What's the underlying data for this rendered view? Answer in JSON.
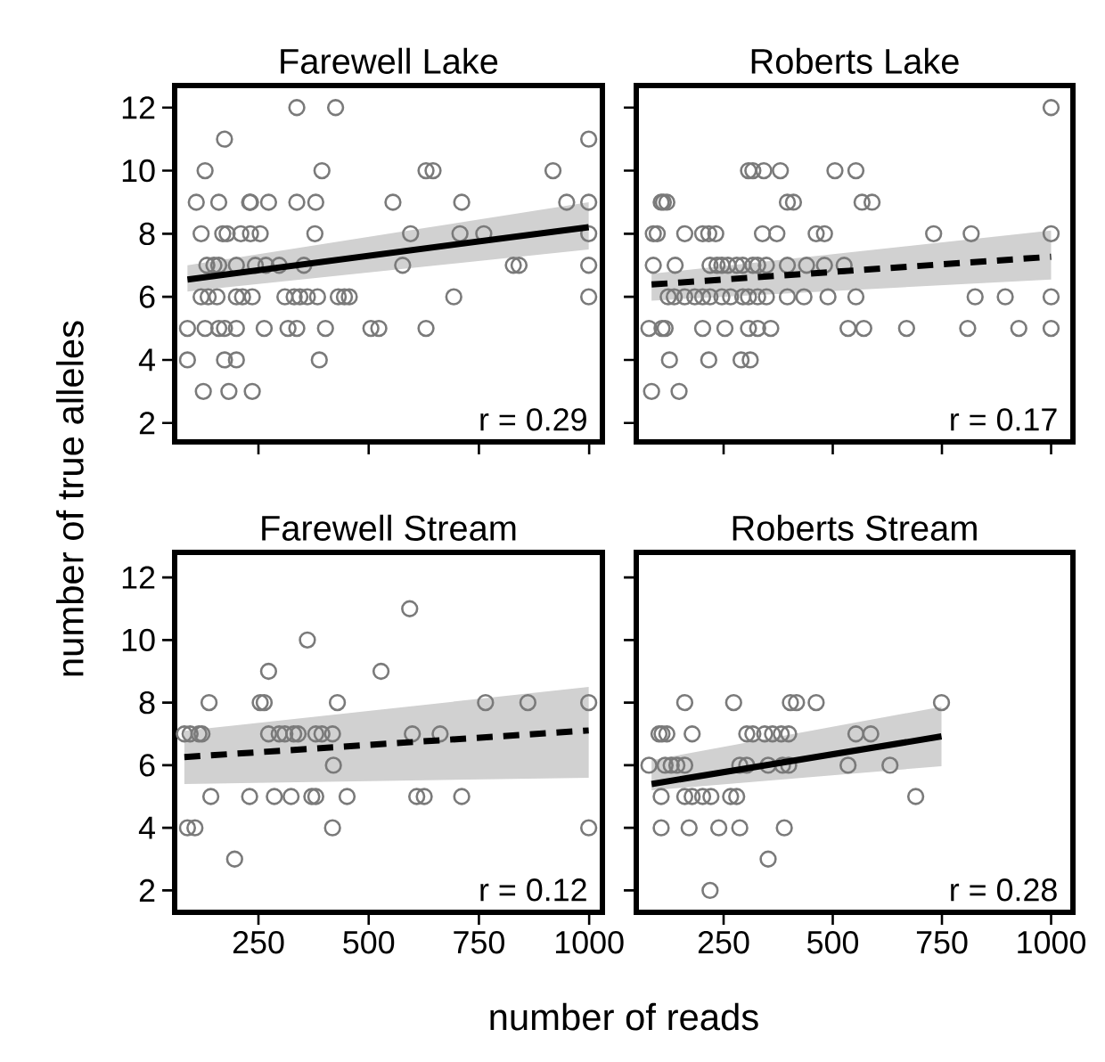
{
  "chart_data": [
    {
      "type": "scatter",
      "title": "Farewell Lake",
      "ylabel": "number of true alleles",
      "xlim": [
        60,
        1030
      ],
      "ylim": [
        1.4,
        12.7
      ],
      "xticks": [
        250,
        500,
        750,
        1000
      ],
      "yticks": [
        2,
        4,
        6,
        8,
        10,
        12
      ],
      "tick_labels": "y",
      "marker": "circle",
      "annotations": [
        "r = 0.29"
      ],
      "series": [
        {
          "color": "#7a7a7a",
          "x": [
            337,
            425,
            173,
            999,
            129,
            394,
            630,
            646,
            918,
            109,
            160,
            230,
            232,
            273,
            337,
            380,
            555,
            711,
            949,
            999,
            120,
            169,
            179,
            210,
            232,
            254,
            378,
            595,
            707,
            761,
            999,
            133,
            149,
            160,
            200,
            243,
            267,
            297,
            353,
            577,
            828,
            841,
            999,
            120,
            136,
            156,
            200,
            214,
            236,
            310,
            331,
            344,
            361,
            384,
            431,
            445,
            456,
            693,
            999,
            89,
            129,
            160,
            173,
            200,
            263,
            317,
            337,
            402,
            505,
            523,
            630,
            89,
            173,
            200,
            388,
            125,
            183,
            236
          ],
          "values": [
            12,
            12,
            11,
            11,
            10,
            10,
            10,
            10,
            10,
            9,
            9,
            9,
            9,
            9,
            9,
            9,
            9,
            9,
            9,
            9,
            8,
            8,
            8,
            8,
            8,
            8,
            8,
            8,
            8,
            8,
            8,
            7,
            7,
            7,
            7,
            7,
            7,
            7,
            7,
            7,
            7,
            7,
            7,
            6,
            6,
            6,
            6,
            6,
            6,
            6,
            6,
            6,
            6,
            6,
            6,
            6,
            6,
            6,
            6,
            5,
            5,
            5,
            5,
            5,
            5,
            5,
            5,
            5,
            5,
            5,
            5,
            4,
            4,
            4,
            4,
            3,
            3,
            3
          ]
        },
        {
          "type": "line",
          "marker": "none",
          "line_style": "solid",
          "color": "#000000",
          "x": [
            89,
            999
          ],
          "values": [
            6.55,
            8.21
          ],
          "lower": [
            6.17,
            7.5
          ],
          "upper": [
            7.0,
            9.0
          ]
        }
      ]
    },
    {
      "type": "scatter",
      "title": "Roberts Lake",
      "xlim": [
        50,
        1050
      ],
      "ylim": [
        1.4,
        12.7
      ],
      "xticks": [
        250,
        500,
        750,
        1000
      ],
      "yticks": [
        2,
        4,
        6,
        8,
        10,
        12
      ],
      "tick_labels": false,
      "marker": "circle",
      "annotations": [
        "r = 0.17"
      ],
      "series": [
        {
          "color": "#7a7a7a",
          "x": [
            1000,
            307,
            317,
            342,
            380,
            505,
            553,
            107,
            112,
            120,
            396,
            410,
            567,
            590,
            89,
            98,
            161,
            202,
            216,
            232,
            339,
            372,
            462,
            481,
            731,
            817,
            1000,
            89,
            139,
            219,
            235,
            246,
            260,
            280,
            294,
            317,
            328,
            348,
            396,
            440,
            481,
            526,
            123,
            137,
            161,
            184,
            202,
            219,
            246,
            266,
            294,
            307,
            328,
            348,
            396,
            434,
            489,
            553,
            826,
            895,
            1000,
            79,
            109,
            116,
            202,
            253,
            307,
            328,
            358,
            535,
            571,
            669,
            809,
            926,
            1000,
            126,
            216,
            290,
            311,
            85,
            148
          ],
          "values": [
            12,
            10,
            10,
            10,
            10,
            10,
            10,
            9,
            9,
            9,
            9,
            9,
            9,
            9,
            8,
            8,
            8,
            8,
            8,
            8,
            8,
            8,
            8,
            8,
            8,
            8,
            8,
            7,
            7,
            7,
            7,
            7,
            7,
            7,
            7,
            7,
            7,
            7,
            7,
            7,
            7,
            7,
            6,
            6,
            6,
            6,
            6,
            6,
            6,
            6,
            6,
            6,
            6,
            6,
            6,
            6,
            6,
            6,
            6,
            6,
            6,
            5,
            5,
            5,
            5,
            5,
            5,
            5,
            5,
            5,
            5,
            5,
            5,
            5,
            5,
            4,
            4,
            4,
            4,
            3,
            3
          ]
        },
        {
          "type": "line",
          "marker": "none",
          "line_style": "dashed",
          "color": "#000000",
          "x": [
            85,
            1000
          ],
          "values": [
            6.39,
            7.27
          ],
          "lower": [
            5.88,
            6.55
          ],
          "upper": [
            6.73,
            8.1
          ]
        }
      ]
    },
    {
      "type": "scatter",
      "title": "Farewell Stream",
      "xlabel": "number of reads",
      "xlim": [
        60,
        1030
      ],
      "ylim": [
        1.3,
        12.8
      ],
      "xticks": [
        250,
        500,
        750,
        1000
      ],
      "yticks": [
        2,
        4,
        6,
        8,
        10,
        12
      ],
      "marker": "circle",
      "annotations": [
        "r = 0.12"
      ],
      "series": [
        {
          "color": "#7a7a7a",
          "x": [
            593,
            361,
            273,
            528,
            138,
            254,
            263,
            429,
            765,
            861,
            999,
            82,
            95,
            115,
            122,
            273,
            297,
            310,
            330,
            340,
            380,
            394,
            418,
            599,
            662,
            420,
            142,
            230,
            286,
            324,
            371,
            380,
            451,
            609,
            626,
            711,
            89,
            106,
            418,
            999,
            196
          ],
          "values": [
            11,
            10,
            9,
            9,
            8,
            8,
            8,
            8,
            8,
            8,
            8,
            7,
            7,
            7,
            7,
            7,
            7,
            7,
            7,
            7,
            7,
            7,
            7,
            7,
            7,
            6,
            5,
            5,
            5,
            5,
            5,
            5,
            5,
            5,
            5,
            5,
            4,
            4,
            4,
            4,
            3
          ]
        },
        {
          "type": "line",
          "marker": "none",
          "line_style": "dashed",
          "color": "#000000",
          "x": [
            82,
            999
          ],
          "values": [
            6.26,
            7.11
          ],
          "lower": [
            5.4,
            5.6
          ],
          "upper": [
            7.1,
            8.5
          ]
        }
      ]
    },
    {
      "type": "scatter",
      "title": "Roberts Stream",
      "xlim": [
        50,
        1050
      ],
      "ylim": [
        1.3,
        12.8
      ],
      "xticks": [
        250,
        500,
        750,
        1000
      ],
      "yticks": [
        2,
        4,
        6,
        8,
        10,
        12
      ],
      "tick_labels": "x",
      "marker": "circle",
      "annotations": [
        "r = 0.28"
      ],
      "series": [
        {
          "color": "#7a7a7a",
          "x": [
            161,
            273,
            403,
            417,
            462,
            749,
            102,
            109,
            120,
            178,
            303,
            317,
            344,
            362,
            382,
            399,
            553,
            587,
            79,
            116,
            130,
            143,
            161,
            287,
            303,
            352,
            385,
            399,
            535,
            631,
            107,
            161,
            178,
            202,
            221,
            266,
            280,
            690,
            107,
            171,
            239,
            287,
            389,
            352,
            219
          ],
          "values": [
            8,
            8,
            8,
            8,
            8,
            8,
            7,
            7,
            7,
            7,
            7,
            7,
            7,
            7,
            7,
            7,
            7,
            7,
            6,
            6,
            6,
            6,
            6,
            6,
            6,
            6,
            6,
            6,
            6,
            6,
            5,
            5,
            5,
            5,
            5,
            5,
            5,
            5,
            4,
            4,
            4,
            4,
            4,
            3,
            2
          ]
        },
        {
          "type": "line",
          "marker": "none",
          "line_style": "solid",
          "color": "#000000",
          "x": [
            85,
            749
          ],
          "values": [
            5.4,
            6.92
          ],
          "lower": [
            5.2,
            5.97
          ],
          "upper": [
            6.16,
            7.87
          ]
        }
      ]
    }
  ]
}
